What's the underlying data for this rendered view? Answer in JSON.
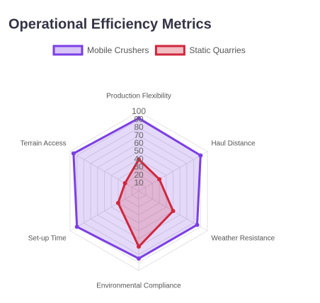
{
  "chart_data": {
    "type": "radar",
    "title": "Operational Efficiency Metrics",
    "categories": [
      "Production Flexibility",
      "Haul Distance",
      "Weather Resistance",
      "Environmental Compliance",
      "Set-up Time",
      "Terrain Access"
    ],
    "series": [
      {
        "name": "Mobile Crushers",
        "color": "#7b3fe4",
        "values": [
          92,
          90,
          85,
          85,
          90,
          95
        ]
      },
      {
        "name": "Static Quarries",
        "color": "#d0273c",
        "values": [
          40,
          30,
          50,
          70,
          30,
          20
        ]
      }
    ],
    "rlim": [
      0,
      100
    ],
    "rticks": [
      10,
      20,
      30,
      40,
      50,
      60,
      70,
      80,
      90,
      100
    ],
    "grid": true,
    "legend": "top"
  }
}
